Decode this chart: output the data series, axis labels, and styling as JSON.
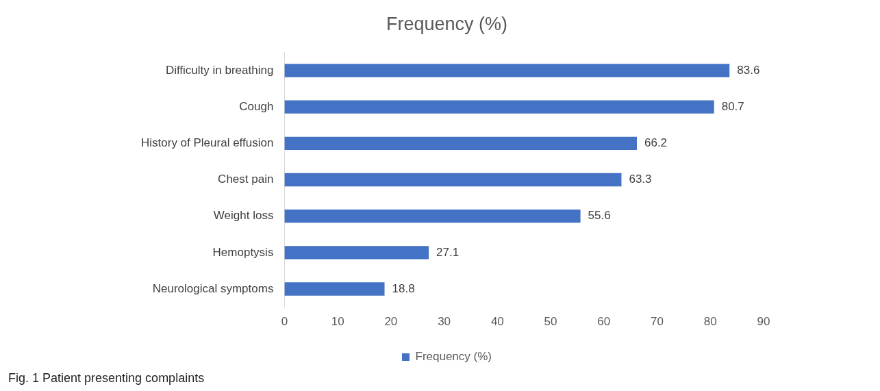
{
  "chart_data": {
    "type": "bar",
    "orientation": "horizontal",
    "title": "Frequency (%)",
    "categories": [
      "Difficulty in breathing",
      "Cough",
      "History of Pleural effusion",
      "Chest pain",
      "Weight loss",
      "Hemoptysis",
      "Neurological symptoms"
    ],
    "series": [
      {
        "name": "Frequency (%)",
        "color": "#4472c4",
        "values": [
          83.6,
          80.7,
          66.2,
          63.3,
          55.6,
          27.1,
          18.8
        ]
      }
    ],
    "xlim": [
      0,
      90
    ],
    "xticks": [
      0,
      10,
      20,
      30,
      40,
      50,
      60,
      70,
      80,
      90
    ],
    "grid": false,
    "legend": "bottom",
    "data_labels": true,
    "annotations": [
      "Fig. 1  Patient presenting complaints"
    ]
  }
}
